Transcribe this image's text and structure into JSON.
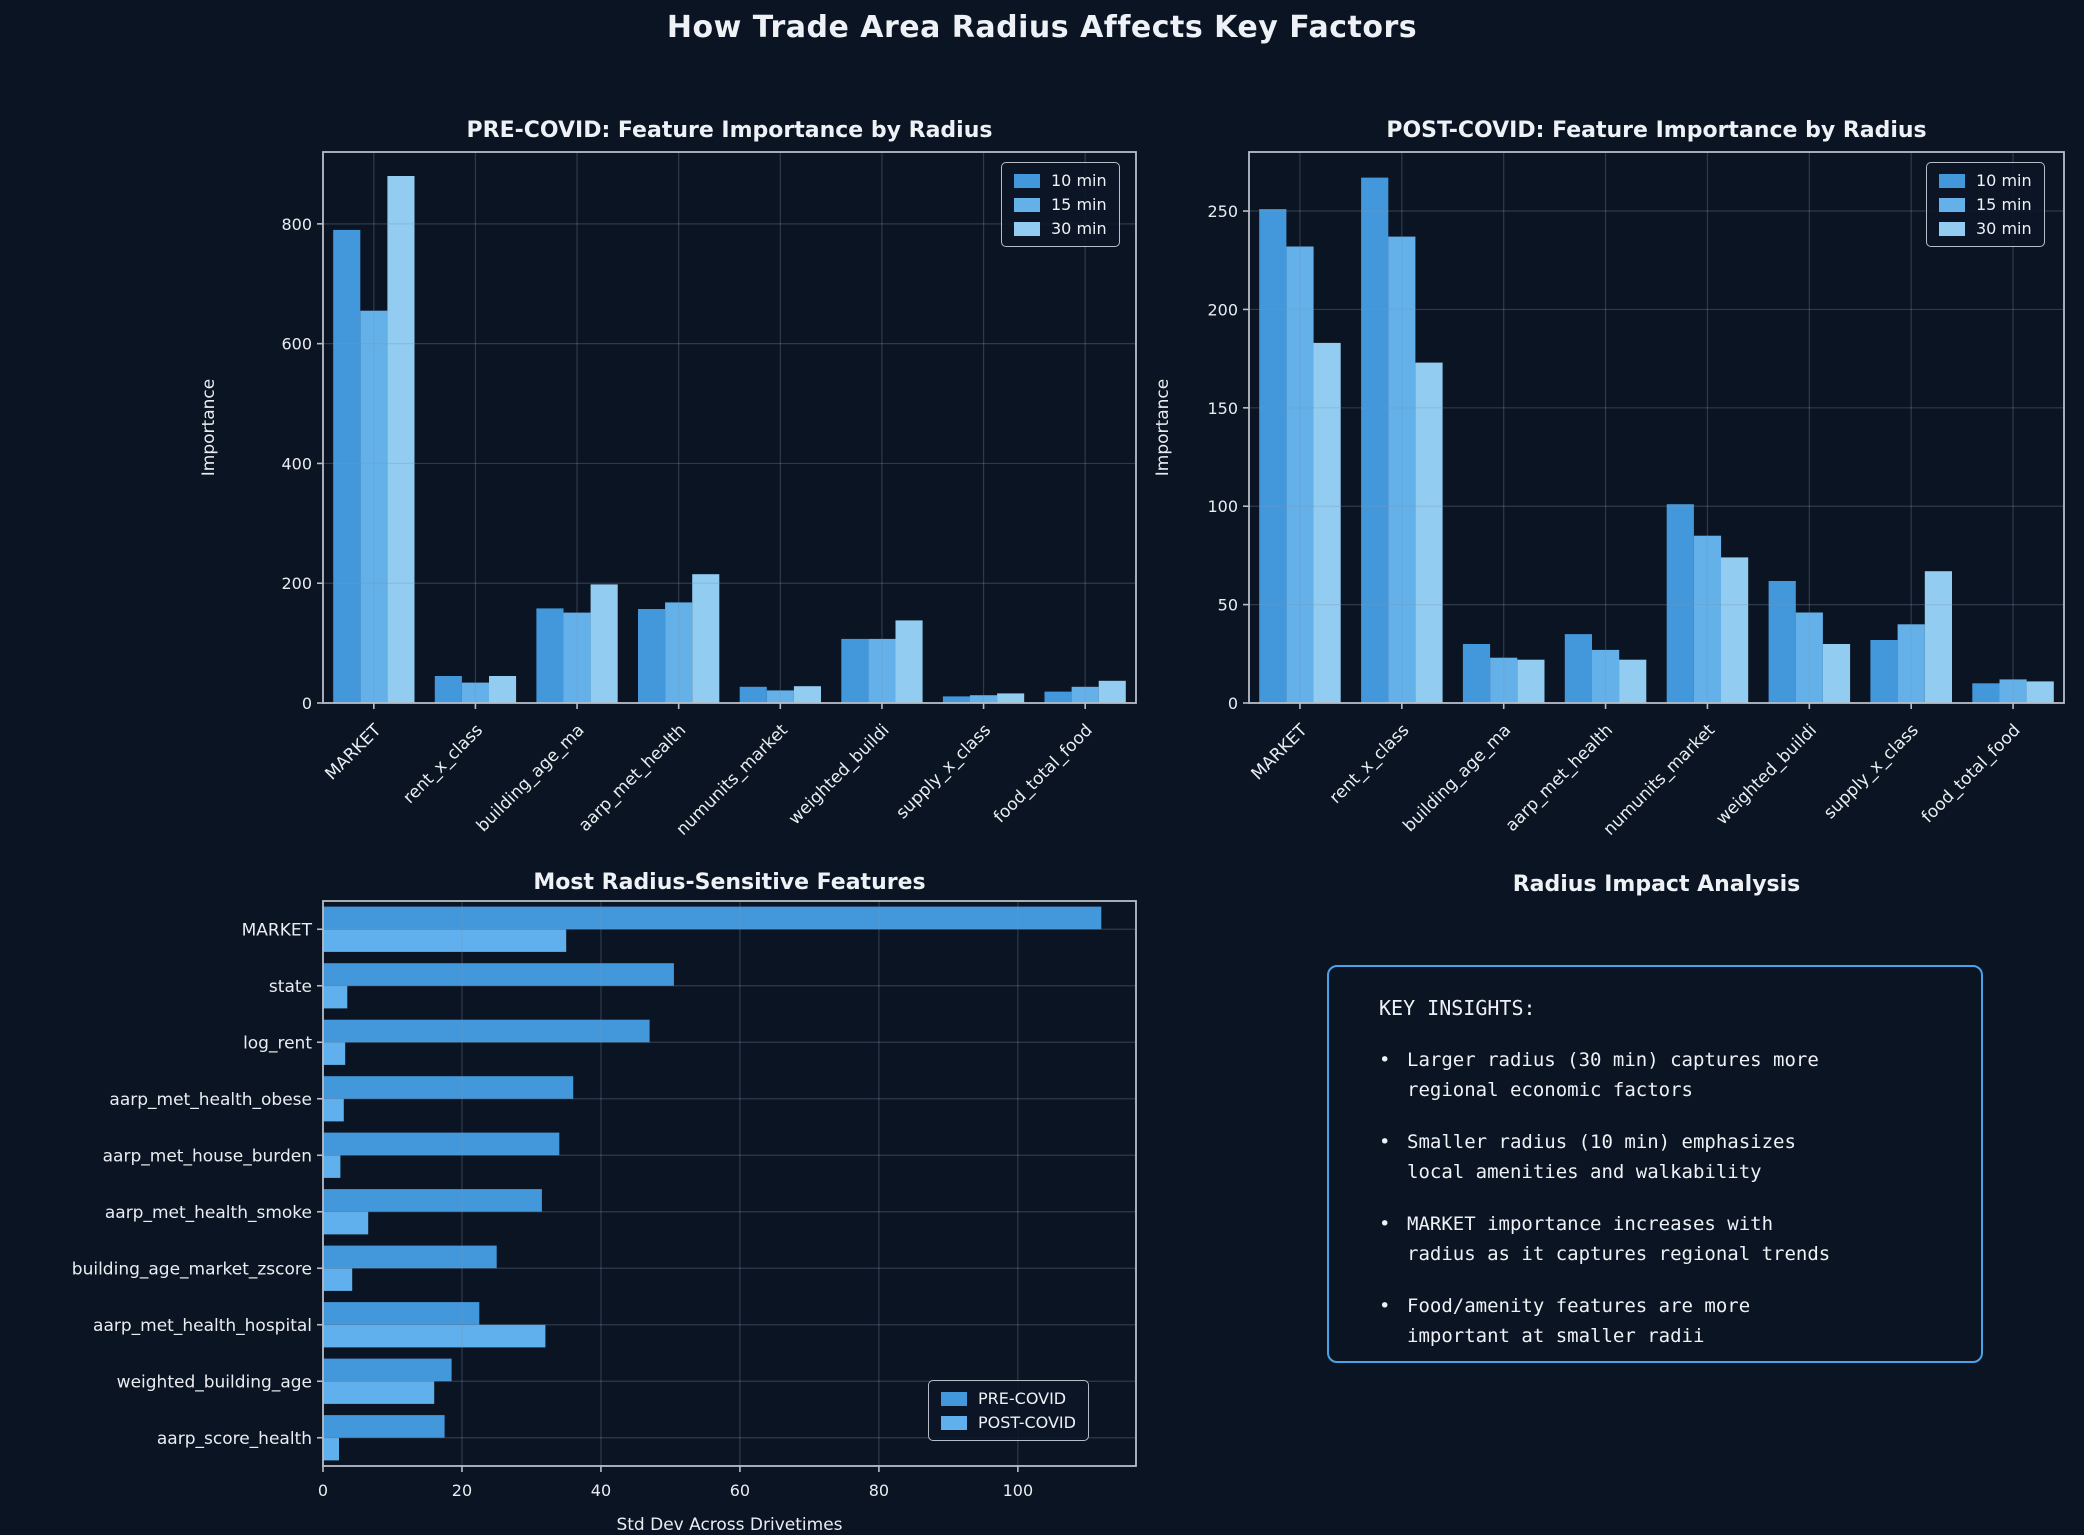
{
  "page": {
    "title": "How Trade Area Radius Affects Key Factors",
    "background": "#0b1422",
    "accent_border": "#4aa2e8"
  },
  "colors": {
    "radius_10min": "#4398dc",
    "radius_15min": "#64b0e8",
    "radius_30min": "#92ccf0",
    "pre_covid": "#4398dc",
    "post_covid": "#5fb0ec",
    "grid": "rgba(125,150,180,0.30)",
    "spine": "#b7bec9",
    "text": "#e9edf2"
  },
  "chart_data": [
    {
      "id": "pre-covid",
      "type": "bar",
      "title": "PRE-COVID: Feature Importance by Radius",
      "ylabel": "Importance",
      "categories": [
        "MARKET",
        "rent_x_class",
        "building_age_ma",
        "aarp_met_health",
        "numunits_market",
        "weighted_buildi",
        "supply_x_class",
        "food_total_food"
      ],
      "series": [
        {
          "name": "10 min",
          "color": "#4398dc",
          "values": [
            790,
            45,
            158,
            157,
            27,
            107,
            11,
            19
          ]
        },
        {
          "name": "15 min",
          "color": "#64b0e8",
          "values": [
            655,
            34,
            151,
            168,
            21,
            107,
            13,
            27
          ]
        },
        {
          "name": "30 min",
          "color": "#92ccf0",
          "values": [
            880,
            45,
            198,
            215,
            28,
            138,
            16,
            37
          ]
        }
      ],
      "ylim": [
        0,
        920
      ],
      "yticks": [
        0,
        200,
        400,
        600,
        800
      ],
      "grid": "on",
      "legend_position": "top-right"
    },
    {
      "id": "post-covid",
      "type": "bar",
      "title": "POST-COVID: Feature Importance by Radius",
      "ylabel": "Importance",
      "categories": [
        "MARKET",
        "rent_x_class",
        "building_age_ma",
        "aarp_met_health",
        "numunits_market",
        "weighted_buildi",
        "supply_x_class",
        "food_total_food"
      ],
      "series": [
        {
          "name": "10 min",
          "color": "#4398dc",
          "values": [
            251,
            267,
            30,
            35,
            101,
            62,
            32,
            10
          ]
        },
        {
          "name": "15 min",
          "color": "#64b0e8",
          "values": [
            232,
            237,
            23,
            27,
            85,
            46,
            40,
            12
          ]
        },
        {
          "name": "30 min",
          "color": "#92ccf0",
          "values": [
            183,
            173,
            22,
            22,
            74,
            30,
            67,
            11
          ]
        }
      ],
      "ylim": [
        0,
        280
      ],
      "yticks": [
        0,
        50,
        100,
        150,
        200,
        250
      ],
      "grid": "on",
      "legend_position": "top-right"
    },
    {
      "id": "radius-sensitivity",
      "type": "bar-horizontal",
      "title": "Most Radius-Sensitive Features",
      "xlabel": "Std Dev Across Drivetimes",
      "categories": [
        "MARKET",
        "state",
        "log_rent",
        "aarp_met_health_obese",
        "aarp_met_house_burden",
        "aarp_met_health_smoke",
        "building_age_market_zscore",
        "aarp_met_health_hospital",
        "weighted_building_age",
        "aarp_score_health"
      ],
      "series": [
        {
          "name": "PRE-COVID",
          "color": "#4398dc",
          "values": [
            112,
            50.5,
            47,
            36,
            34,
            31.5,
            25,
            22.5,
            18.5,
            17.5
          ]
        },
        {
          "name": "POST-COVID",
          "color": "#5fb0ec",
          "values": [
            35,
            3.5,
            3.2,
            3.0,
            2.5,
            6.5,
            4.2,
            32,
            16,
            2.3
          ]
        }
      ],
      "xlim": [
        0,
        117
      ],
      "xticks": [
        0,
        20,
        40,
        60,
        80,
        100
      ],
      "grid": "on",
      "legend_position": "bottom-right"
    }
  ],
  "insights": {
    "title": "Radius Impact Analysis",
    "heading": "KEY INSIGHTS:",
    "bullet_char": "•",
    "bullets": [
      {
        "line1": "Larger radius (30 min) captures more",
        "line2": "regional economic factors"
      },
      {
        "line1": "Smaller radius (10 min) emphasizes",
        "line2": "local amenities and walkability"
      },
      {
        "line1": "MARKET importance increases with",
        "line2": "radius as it captures regional trends"
      },
      {
        "line1": "Food/amenity features are more",
        "line2": "important at smaller radii"
      }
    ]
  }
}
